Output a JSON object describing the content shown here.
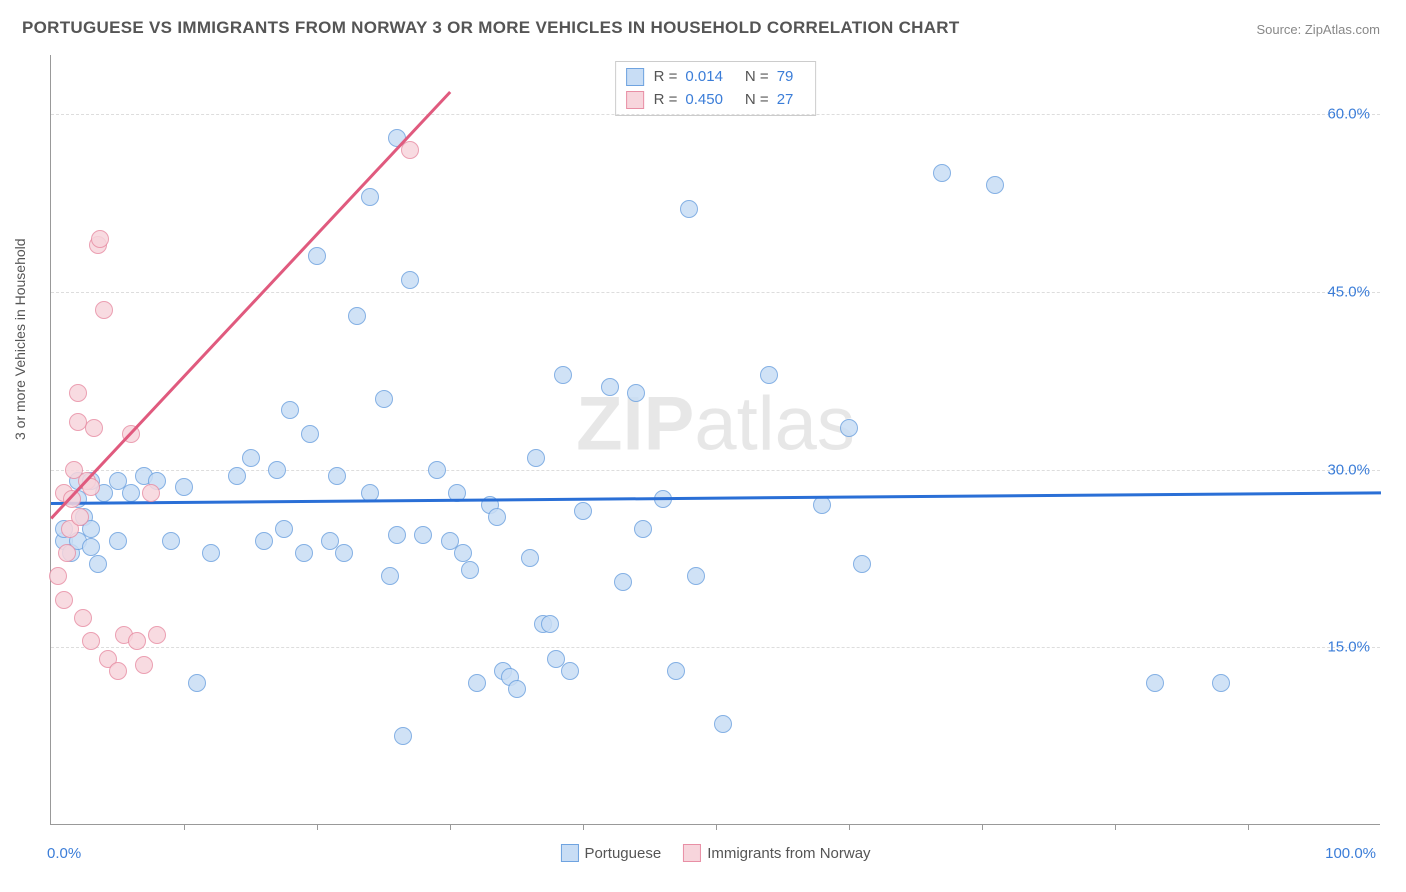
{
  "title": "PORTUGUESE VS IMMIGRANTS FROM NORWAY 3 OR MORE VEHICLES IN HOUSEHOLD CORRELATION CHART",
  "source": "Source: ZipAtlas.com",
  "ylabel": "3 or more Vehicles in Household",
  "chart": {
    "type": "scatter",
    "xlim": [
      0,
      100
    ],
    "ylim": [
      0,
      65
    ],
    "background_color": "#ffffff",
    "grid_color": "#dddddd",
    "axis_color": "#999999",
    "yticks": [
      {
        "value": 15,
        "label": "15.0%"
      },
      {
        "value": 30,
        "label": "30.0%"
      },
      {
        "value": 45,
        "label": "45.0%"
      },
      {
        "value": 60,
        "label": "60.0%"
      }
    ],
    "ytick_label_color": "#3b7dd8",
    "xticks_minor": [
      10,
      20,
      30,
      40,
      50,
      60,
      70,
      80,
      90
    ],
    "xtick_labels": [
      {
        "value": 0,
        "label": "0.0%",
        "align": "left"
      },
      {
        "value": 100,
        "label": "100.0%",
        "align": "right"
      }
    ],
    "xtick_label_color": "#3b7dd8",
    "series": [
      {
        "name": "Portuguese",
        "marker_fill": "#c8ddf5",
        "marker_stroke": "#6fa3e0",
        "marker_radius": 9,
        "marker_opacity": 0.85,
        "trend_color": "#2a6fd6",
        "trend_width": 2.5,
        "trend_start": [
          0,
          27.3
        ],
        "trend_end": [
          100,
          28.2
        ],
        "R": "0.014",
        "N": "79",
        "points": [
          [
            1,
            24
          ],
          [
            1,
            25
          ],
          [
            1.5,
            23
          ],
          [
            2,
            29
          ],
          [
            2,
            24
          ],
          [
            2.5,
            26
          ],
          [
            3,
            29
          ],
          [
            3,
            25
          ],
          [
            3,
            23.5
          ],
          [
            4,
            28
          ],
          [
            5,
            29
          ],
          [
            5,
            24
          ],
          [
            6,
            28
          ],
          [
            7,
            29.5
          ],
          [
            8,
            29
          ],
          [
            9,
            24
          ],
          [
            10,
            28.5
          ],
          [
            11,
            12
          ],
          [
            12,
            23
          ],
          [
            14,
            29.5
          ],
          [
            15,
            31
          ],
          [
            16,
            24
          ],
          [
            17,
            30
          ],
          [
            17.5,
            25
          ],
          [
            18,
            35
          ],
          [
            19,
            23
          ],
          [
            19.5,
            33
          ],
          [
            20,
            48
          ],
          [
            21,
            24
          ],
          [
            21.5,
            29.5
          ],
          [
            22,
            23
          ],
          [
            23,
            43
          ],
          [
            24,
            53
          ],
          [
            24,
            28
          ],
          [
            25,
            36
          ],
          [
            25.5,
            21
          ],
          [
            26,
            24.5
          ],
          [
            26,
            58
          ],
          [
            26.5,
            7.5
          ],
          [
            27,
            46
          ],
          [
            28,
            24.5
          ],
          [
            29,
            30
          ],
          [
            30,
            24
          ],
          [
            30.5,
            28
          ],
          [
            31,
            23
          ],
          [
            31.5,
            21.5
          ],
          [
            32,
            12
          ],
          [
            33,
            27
          ],
          [
            33.5,
            26
          ],
          [
            34,
            13
          ],
          [
            34.5,
            12.5
          ],
          [
            35,
            11.5
          ],
          [
            36,
            22.5
          ],
          [
            36.5,
            31
          ],
          [
            37,
            17
          ],
          [
            37.5,
            17
          ],
          [
            38,
            14
          ],
          [
            38.5,
            38
          ],
          [
            39,
            13
          ],
          [
            40,
            26.5
          ],
          [
            42,
            37
          ],
          [
            43,
            20.5
          ],
          [
            44,
            36.5
          ],
          [
            44.5,
            25
          ],
          [
            46,
            27.5
          ],
          [
            47,
            13
          ],
          [
            48,
            52
          ],
          [
            48.5,
            21
          ],
          [
            50.5,
            8.5
          ],
          [
            54,
            38
          ],
          [
            58,
            27
          ],
          [
            60,
            33.5
          ],
          [
            61,
            22
          ],
          [
            67,
            55
          ],
          [
            71,
            54
          ],
          [
            83,
            12
          ],
          [
            88,
            12
          ],
          [
            2,
            27.5
          ],
          [
            3.5,
            22
          ]
        ]
      },
      {
        "name": "Immigrants from Norway",
        "marker_fill": "#f7d5dc",
        "marker_stroke": "#e88fa5",
        "marker_radius": 9,
        "marker_opacity": 0.85,
        "trend_color": "#e05a7e",
        "trend_width": 2.5,
        "trend_start": [
          0,
          26
        ],
        "trend_end": [
          30,
          62
        ],
        "R": "0.450",
        "N": "27",
        "points": [
          [
            0.5,
            21
          ],
          [
            1,
            19
          ],
          [
            1,
            28
          ],
          [
            1.2,
            23
          ],
          [
            1.4,
            25
          ],
          [
            1.6,
            27.5
          ],
          [
            1.7,
            30
          ],
          [
            2,
            34
          ],
          [
            2,
            36.5
          ],
          [
            2.2,
            26
          ],
          [
            2.4,
            17.5
          ],
          [
            2.7,
            29
          ],
          [
            3,
            15.5
          ],
          [
            3,
            28.5
          ],
          [
            3.2,
            33.5
          ],
          [
            3.5,
            49
          ],
          [
            3.7,
            49.5
          ],
          [
            4,
            43.5
          ],
          [
            4.3,
            14
          ],
          [
            5,
            13
          ],
          [
            5.5,
            16
          ],
          [
            6,
            33
          ],
          [
            6.5,
            15.5
          ],
          [
            7,
            13.5
          ],
          [
            7.5,
            28
          ],
          [
            8,
            16
          ],
          [
            27,
            57
          ]
        ]
      }
    ]
  },
  "legend_bottom": [
    {
      "label": "Portuguese",
      "fill": "#c8ddf5",
      "stroke": "#6fa3e0"
    },
    {
      "label": "Immigrants from Norway",
      "fill": "#f7d5dc",
      "stroke": "#e88fa5"
    }
  ],
  "watermark": {
    "bold": "ZIP",
    "thin": "atlas"
  }
}
